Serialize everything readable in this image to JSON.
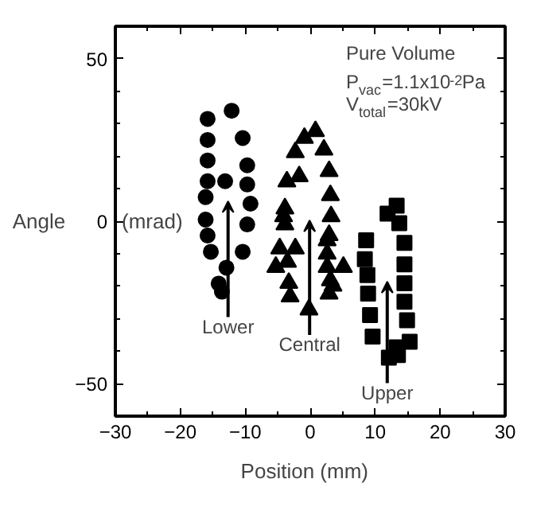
{
  "chart_data": {
    "type": "scatter",
    "xlabel": "Position   (mm)",
    "ylabel": "Angle   (mrad)",
    "xlim": [
      -30,
      30
    ],
    "ylim": [
      -60,
      60
    ],
    "xticks": [
      -30,
      {
        "value": -25,
        "label": null
      },
      -20,
      {
        "value": -15,
        "label": null
      },
      -10,
      {
        "value": -5,
        "label": null
      },
      0,
      {
        "value": 5,
        "label": null
      },
      10,
      {
        "value": 15,
        "label": null
      },
      20,
      {
        "value": 25,
        "label": null
      },
      30
    ],
    "yticks": [
      {
        "value": -60,
        "label": null
      },
      -50,
      {
        "value": -40,
        "label": null
      },
      {
        "value": -30,
        "label": null
      },
      {
        "value": -20,
        "label": null
      },
      {
        "value": -10,
        "label": null
      },
      0,
      {
        "value": 10,
        "label": null
      },
      {
        "value": 20,
        "label": null
      },
      {
        "value": 30,
        "label": null
      },
      {
        "value": 40,
        "label": null
      },
      50
    ],
    "grid": false,
    "series": [
      {
        "name": "Lower",
        "color": "#000000",
        "marker": "circle",
        "x": [
          -15.8,
          -12.1,
          -15.8,
          -10.4,
          -15.8,
          -9.7,
          -15.8,
          -13.1,
          -9.7,
          -16.1,
          -9.2,
          -16.1,
          -9.7,
          -15.8,
          -15.3,
          -10.4,
          -12.9,
          -14.1,
          -13.6
        ],
        "values": [
          31.5,
          34,
          25,
          25.6,
          18.7,
          17.2,
          12.3,
          12.3,
          11.3,
          7.4,
          5.4,
          0.5,
          -1,
          -4.4,
          -9.4,
          -9.4,
          -14.3,
          -19.2,
          -21.7
        ]
      },
      {
        "name": "Central",
        "color": "#000000",
        "marker": "triangle",
        "x": [
          0.8,
          -0.9,
          -2.3,
          2.1,
          -1.7,
          2.9,
          -3.6,
          3.1,
          -3.9,
          -4.1,
          -3.9,
          3.2,
          2.9,
          2.6,
          -4.7,
          -2.3,
          2.6,
          5.1,
          2.6,
          -3.5,
          -5.3,
          -3.3,
          3.1,
          -3.1,
          2.9,
          -0.2,
          3.5
        ],
        "values": [
          27.7,
          25.6,
          21.2,
          22,
          13.8,
          15.4,
          12.2,
          8,
          3.9,
          1.5,
          -1,
          1.5,
          -4.3,
          -5.9,
          -8.4,
          -8.4,
          -10,
          -14.1,
          -14.1,
          -12.5,
          -14.1,
          -19,
          -18.2,
          -23.2,
          -22.3,
          -27.2,
          -19.9
        ]
      },
      {
        "name": "Upper",
        "color": "#000000",
        "marker": "square",
        "x": [
          13.3,
          11.9,
          13.7,
          8.6,
          14.5,
          8.4,
          14.5,
          8.8,
          14.5,
          8.9,
          14.5,
          9.2,
          14.9,
          9.6,
          15.3,
          13.3,
          12.1,
          13.5
        ],
        "values": [
          4.8,
          2.3,
          -0.6,
          -5.9,
          -6.7,
          -11.7,
          -13.3,
          -16.6,
          -19.1,
          -22.3,
          -24.8,
          -28.9,
          -30.5,
          -35.5,
          -37.1,
          -38.8,
          -42,
          -41.2
        ]
      }
    ],
    "annotations": [
      "Pure Volume",
      "P$_{vac}$=1.1x10$^{-2}$Pa",
      "V$_{total}$=30kV"
    ]
  }
}
